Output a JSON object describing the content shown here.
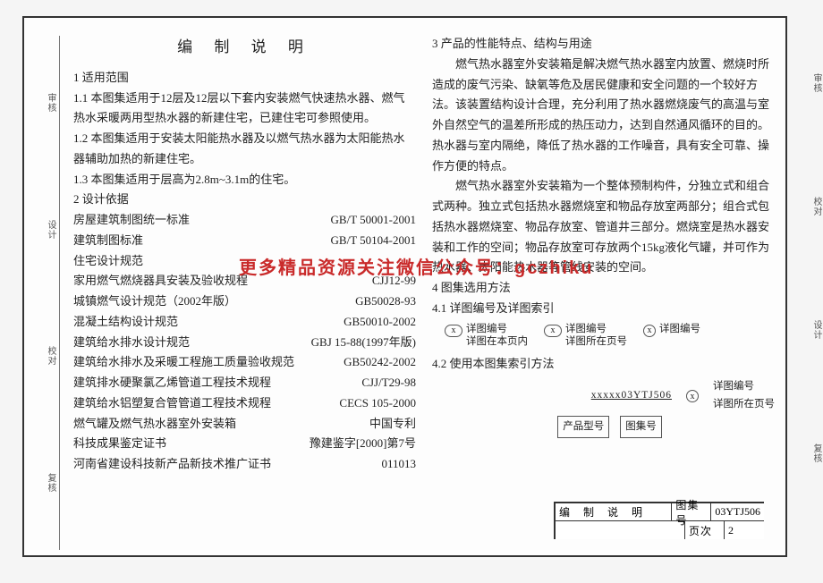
{
  "title_main": "编 制 说 明",
  "left": {
    "h_scope": "1  适用范围",
    "p_1_1": "1.1 本图集适用于12层及12层以下套内安装燃气快速热水器、燃气热水采暖两用型热水器的新建住宅，已建住宅可参照使用。",
    "p_1_2": "1.2 本图集适用于安装太阳能热水器及以燃气热水器为太阳能热水器辅助加热的新建住宅。",
    "p_1_3": "1.3 本图集适用于层高为2.8m~3.1m的住宅。",
    "h_basis": "2  设计依据",
    "stds": [
      {
        "name": "房屋建筑制图统一标准",
        "code": "GB/T 50001-2001"
      },
      {
        "name": "建筑制图标准",
        "code": "GB/T 50104-2001"
      },
      {
        "name": "住宅设计规范",
        "code": ""
      },
      {
        "name": "家用燃气燃烧器具安装及验收规程",
        "code": "CJJ12-99"
      },
      {
        "name": "城镇燃气设计规范（2002年版）",
        "code": "GB50028-93"
      },
      {
        "name": "混凝土结构设计规范",
        "code": "GB50010-2002"
      },
      {
        "name": "建筑给水排水设计规范",
        "code": "GBJ 15-88(1997年版)"
      },
      {
        "name": "建筑给水排水及采暖工程施工质量验收规范",
        "code": "GB50242-2002"
      },
      {
        "name": "建筑排水硬聚氯乙烯管道工程技术规程",
        "code": "CJJ/T29-98"
      },
      {
        "name": "建筑给水铝塑复合管管道工程技术规程",
        "code": "CECS 105-2000"
      },
      {
        "name": "燃气罐及燃气热水器室外安装箱",
        "code": "中国专利"
      },
      {
        "name": "科技成果鉴定证书",
        "code": "豫建鉴字[2000]第7号"
      },
      {
        "name": "河南省建设科技新产品新技术推广证书",
        "code": "011013"
      }
    ]
  },
  "right": {
    "h_3": "3  产品的性能特点、结构与用途",
    "p_3_1": "　　燃气热水器室外安装箱是解决燃气热水器室内放置、燃烧时所造成的废气污染、缺氧等危及居民健康和安全问题的一个较好方法。该装置结构设计合理，充分利用了热水器燃烧废气的高温与室外自然空气的温差所形成的热压动力，达到自然通风循环的目的。热水器与室内隔绝，降低了热水器的工作噪音，具有安全可靠、操作方便的特点。",
    "p_3_2": "　　燃气热水器室外安装箱为一个整体预制构件，分独立式和组合式两种。独立式包括热水器燃烧室和物品存放室两部分；组合式包括热水器燃烧室、物品存放室、管道井三部分。燃烧室是热水器安装和工作的空间；物品存放室可存放两个15kg液化气罐，并可作为热水器、太阳能热水器等管线安装的空间。",
    "h_4": "4  图集选用方法",
    "h_4_1": "4.1 详图编号及详图索引",
    "diag": {
      "a1": "详图编号",
      "a2": "详图在本页内",
      "b1": "详图编号",
      "b2": "详图所在页号",
      "c1": "详图编号"
    },
    "h_4_2": "4.2 使用本图集索引方法",
    "idx": {
      "code": "xxxxx03YTJ506",
      "prod": "产品型号",
      "atlas": "图集号",
      "r1": "详图编号",
      "r2": "详图所在页号"
    }
  },
  "watermark": "更多精品资源关注微信公众号：gczhiku",
  "title_block": {
    "center": "编 制 说 明",
    "atlas_lbl": "图集号",
    "atlas_val": "03YTJ506",
    "page_lbl": "页次",
    "page_val": "2"
  },
  "sides": {
    "left": [
      "审核",
      "设计",
      "校对",
      "复核"
    ],
    "right": [
      "审核",
      "校对",
      "设计",
      "复核"
    ]
  }
}
